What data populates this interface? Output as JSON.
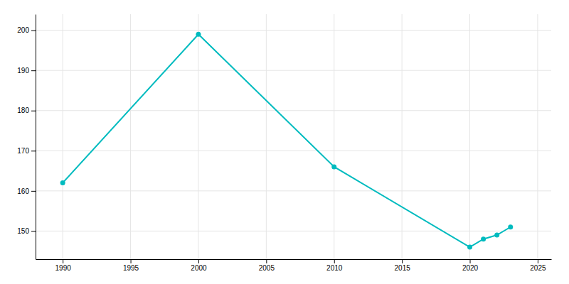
{
  "chart_data": {
    "type": "line",
    "x": [
      1990,
      2000,
      2010,
      2020,
      2021,
      2022,
      2023
    ],
    "values": [
      162,
      199,
      166,
      146,
      148,
      149,
      151
    ],
    "color": "#00BBBF",
    "marker": "circle",
    "xlim": [
      1988,
      2026
    ],
    "ylim": [
      143,
      204
    ],
    "xticks": [
      1990,
      1995,
      2000,
      2005,
      2010,
      2015,
      2020,
      2025
    ],
    "yticks": [
      150,
      160,
      170,
      180,
      190,
      200
    ],
    "grid": true
  }
}
